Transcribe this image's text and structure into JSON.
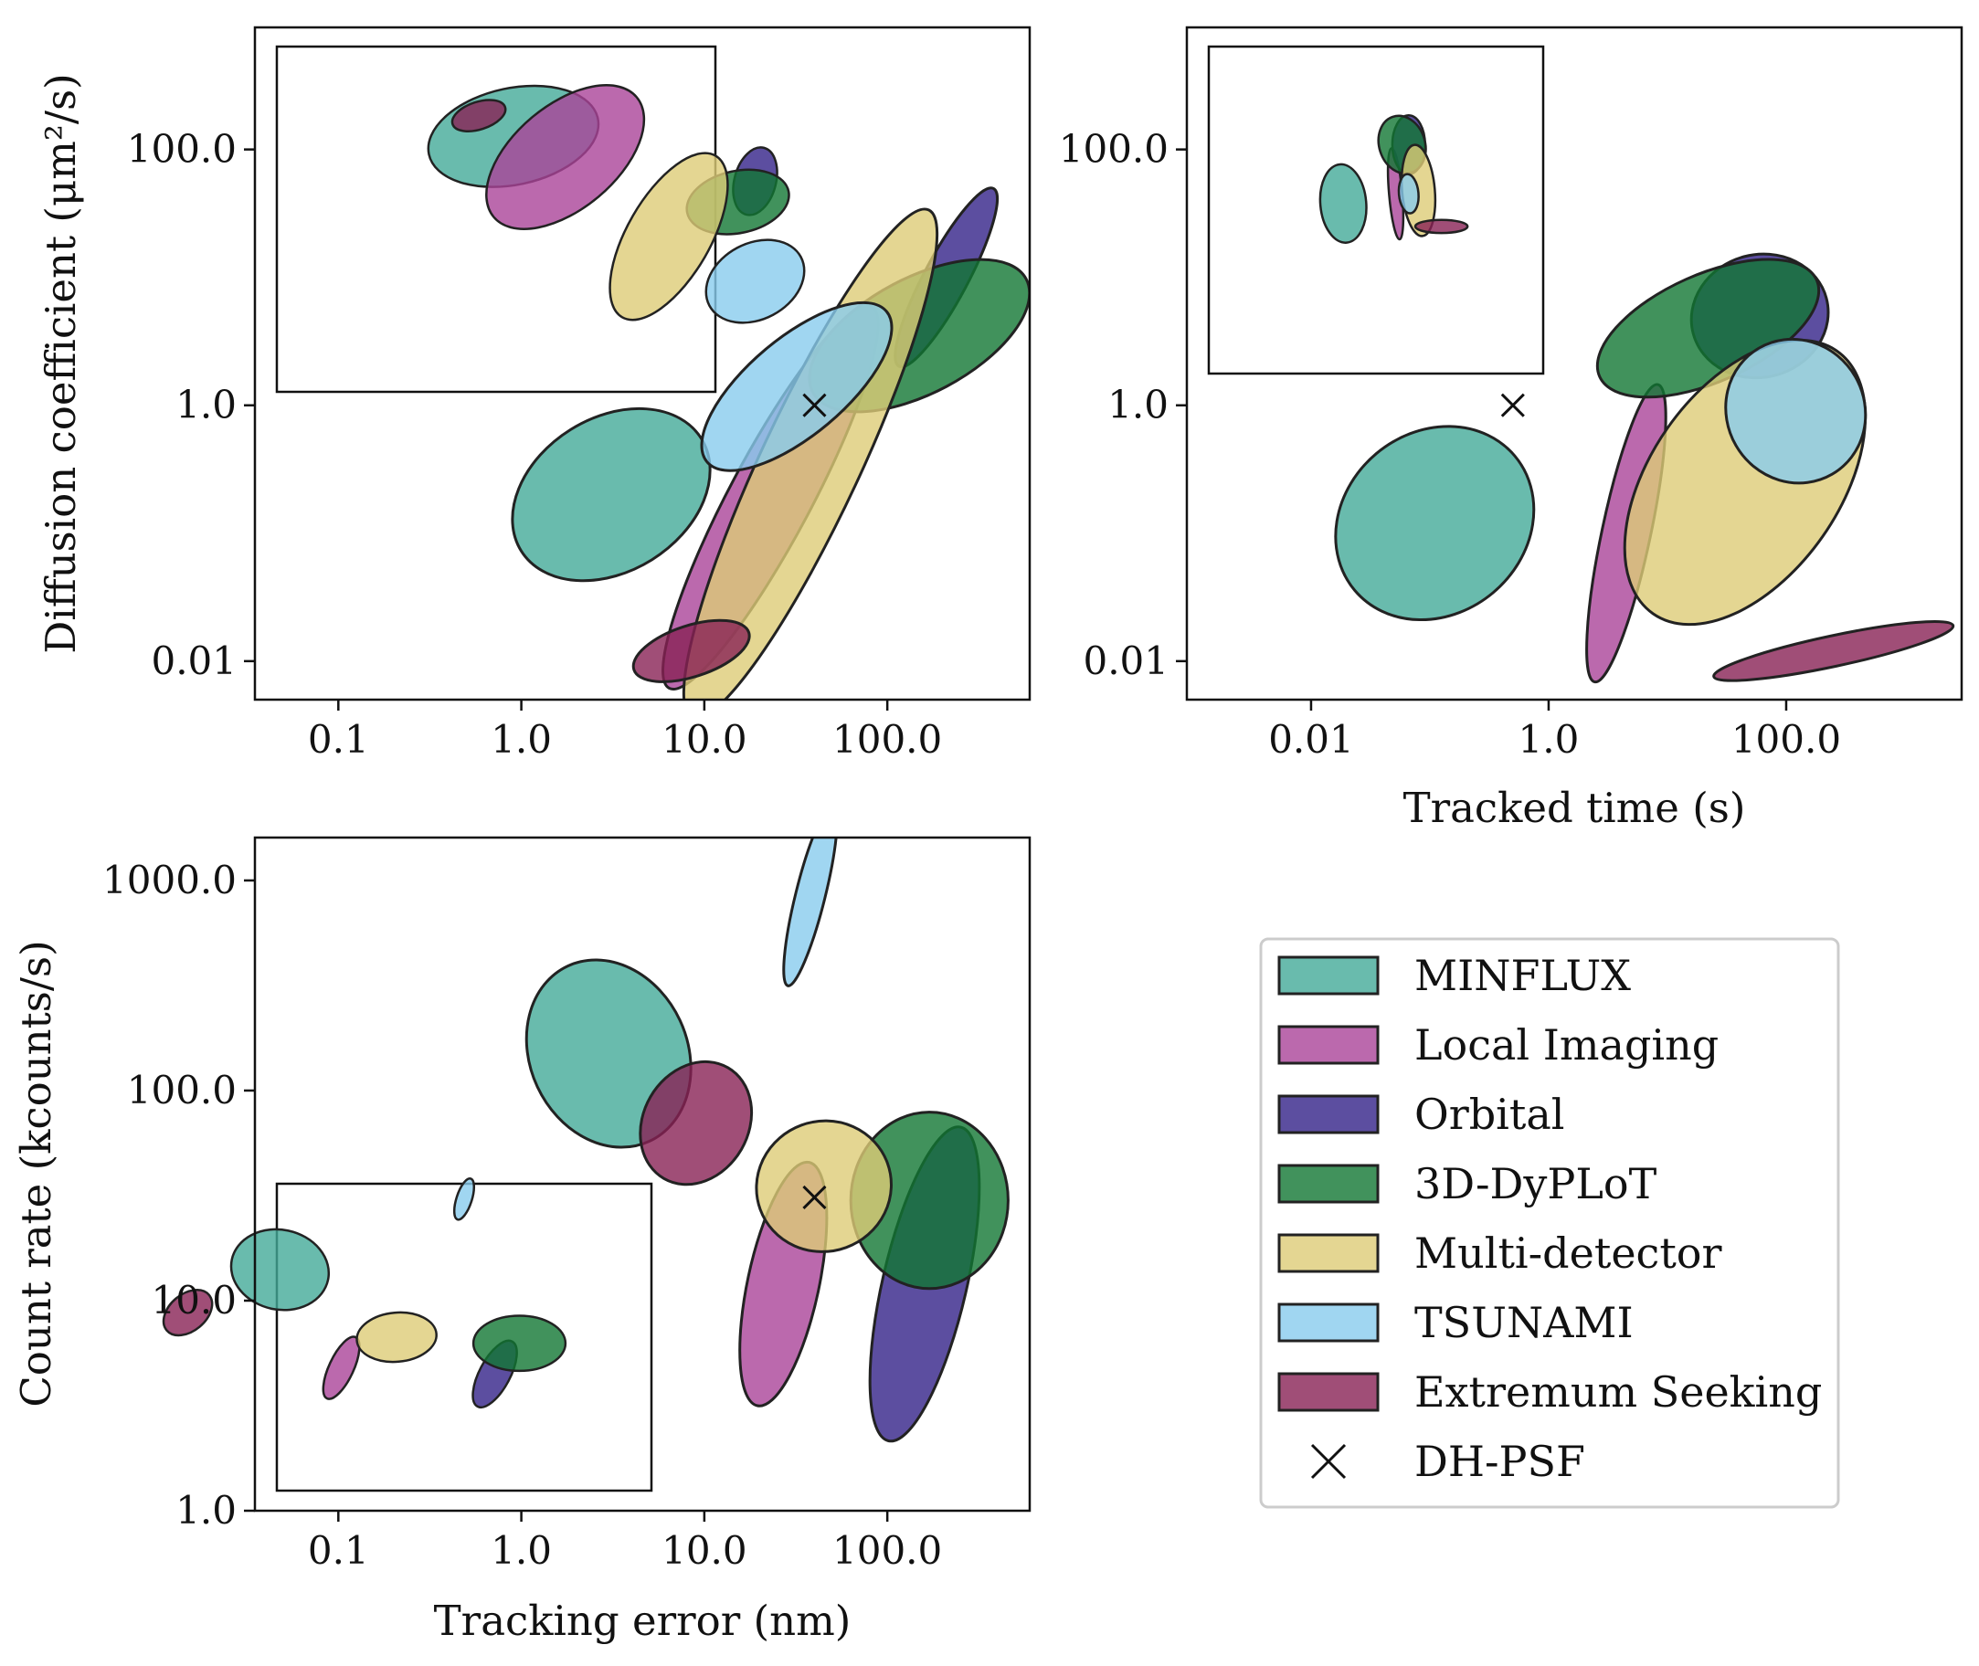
{
  "colors": {
    "MINFLUX": "#44aa99",
    "Local Imaging": "#aa4499",
    "Orbital": "#332288",
    "3D-DyPLoT": "#117733",
    "Multi-detector": "#ddcc77",
    "TSUNAMI": "#88ccee",
    "Extremum Seeking": "#882255",
    "edge": "#222222"
  },
  "legend": {
    "items": [
      {
        "label": "MINFLUX",
        "method": "MINFLUX"
      },
      {
        "label": "Local Imaging",
        "method": "Local Imaging"
      },
      {
        "label": "Orbital",
        "method": "Orbital"
      },
      {
        "label": "3D-DyPLoT",
        "method": "3D-DyPLoT"
      },
      {
        "label": "Multi-detector",
        "method": "Multi-detector"
      },
      {
        "label": "TSUNAMI",
        "method": "TSUNAMI"
      },
      {
        "label": "Extremum Seeking",
        "method": "Extremum Seeking"
      },
      {
        "label": "DH-PSF",
        "method": "DH-PSF",
        "marker": "x"
      }
    ]
  },
  "chart_data": [
    {
      "id": "error_vs_diffusion",
      "type": "scatter",
      "description_of_marks": "ellipses spanning method ranges, log-log axes",
      "xlabel": "",
      "ylabel": "Diffusion coefficient (μm²/s)",
      "xscale": "log",
      "yscale": "log",
      "xlim": [
        0.035,
        600
      ],
      "ylim": [
        0.005,
        900
      ],
      "xticks": [
        0.1,
        1,
        10,
        100
      ],
      "xtick_labels": [
        "0.1",
        "1.0",
        "10.0",
        "100.0"
      ],
      "yticks": [
        0.01,
        1,
        100
      ],
      "ytick_labels": [
        "0.01",
        "1.0",
        "100.0"
      ],
      "ellipses": [
        {
          "method": "MINFLUX",
          "cx": 3.1,
          "cy": 0.2,
          "rx": 0.58,
          "ry": 0.6,
          "angle": -32
        },
        {
          "method": "Local Imaging",
          "cx": 23,
          "cy": 0.19,
          "rx": 1.18,
          "ry": 0.32,
          "angle": -62
        },
        {
          "method": "Orbital",
          "cx": 210,
          "cy": 10,
          "rx": 0.55,
          "ry": 0.17,
          "angle": -62
        },
        {
          "method": "3D-DyPLoT",
          "cx": 150,
          "cy": 3.5,
          "rx": 0.66,
          "ry": 0.45,
          "angle": -28
        },
        {
          "method": "Multi-detector",
          "cx": 38,
          "cy": 0.35,
          "rx": 1.53,
          "ry": 0.39,
          "angle": -65
        },
        {
          "method": "TSUNAMI",
          "cx": 32,
          "cy": 1.4,
          "rx": 0.64,
          "ry": 0.38,
          "angle": -40
        },
        {
          "method": "Extremum Seeking",
          "cx": 8.5,
          "cy": 0.012,
          "rx": 0.33,
          "ry": 0.2,
          "angle": -18
        }
      ],
      "points": [
        {
          "method": "DH-PSF",
          "x": 40,
          "y": 1.0,
          "marker": "x"
        }
      ],
      "inset": {
        "ellipses": [
          {
            "method": "MINFLUX",
            "cx": 0.05,
            "cy": 0.24,
            "rx": 0.25,
            "ry": 0.14,
            "angle": -12
          },
          {
            "method": "Local Imaging",
            "cx": 0.2,
            "cy": 0.18,
            "rx": 0.27,
            "ry": 0.15,
            "angle": -40
          },
          {
            "method": "Orbital",
            "cx": 0.75,
            "cy": 0.11,
            "rx": 0.06,
            "ry": 0.1,
            "angle": 15
          },
          {
            "method": "3D-DyPLoT",
            "cx": 0.7,
            "cy": 0.05,
            "rx": 0.15,
            "ry": 0.09,
            "angle": -12
          },
          {
            "method": "Multi-detector",
            "cx": 0.5,
            "cy": -0.05,
            "rx": 0.27,
            "ry": 0.12,
            "angle": -60
          },
          {
            "method": "TSUNAMI",
            "cx": 0.75,
            "cy": -0.18,
            "rx": 0.15,
            "ry": 0.11,
            "angle": -28
          },
          {
            "method": "Extremum Seeking",
            "cx": -0.05,
            "cy": 0.3,
            "rx": 0.08,
            "ry": 0.04,
            "angle": -18
          }
        ]
      }
    },
    {
      "id": "time_vs_diffusion",
      "type": "scatter",
      "description_of_marks": "ellipses spanning method ranges, log-log axes",
      "xlabel": "Tracked time (s)",
      "ylabel": "",
      "xscale": "log",
      "yscale": "log",
      "xlim": [
        0.0009,
        3000
      ],
      "ylim": [
        0.005,
        900
      ],
      "xticks": [
        0.01,
        1,
        100
      ],
      "xtick_labels": [
        "0.01",
        "1.0",
        "100.0"
      ],
      "yticks": [
        0.01,
        1,
        100
      ],
      "ytick_labels": [
        "0.01",
        "1.0",
        "100.0"
      ],
      "ellipses": [
        {
          "method": "MINFLUX",
          "cx": 0.11,
          "cy": 0.12,
          "rx": 0.88,
          "ry": 0.71,
          "angle": -40
        },
        {
          "method": "Local Imaging",
          "cx": 4.5,
          "cy": 0.1,
          "rx": 1.28,
          "ry": 0.19,
          "angle": -78
        },
        {
          "method": "Orbital",
          "cx": 60,
          "cy": 5,
          "rx": 0.58,
          "ry": 0.48,
          "angle": -15
        },
        {
          "method": "3D-DyPLoT",
          "cx": 22,
          "cy": 4,
          "rx": 1.0,
          "ry": 0.42,
          "angle": -24
        },
        {
          "method": "Multi-detector",
          "cx": 45,
          "cy": 0.25,
          "rx": 1.35,
          "ry": 0.74,
          "angle": -55
        },
        {
          "method": "TSUNAMI",
          "cx": 120,
          "cy": 0.9,
          "rx": 0.58,
          "ry": 0.57,
          "angle": -30
        },
        {
          "method": "Extremum Seeking",
          "cx": 250,
          "cy": 0.012,
          "rx": 1.03,
          "ry": 0.12,
          "angle": -12
        }
      ],
      "points": [
        {
          "method": "DH-PSF",
          "x": 0.5,
          "y": 1.0,
          "marker": "x"
        }
      ],
      "inset": {
        "ellipses": [
          {
            "method": "MINFLUX",
            "cx": -0.1,
            "cy": 0.02,
            "rx": 0.07,
            "ry": 0.12,
            "angle": -5
          },
          {
            "method": "Local Imaging",
            "cx": 0.06,
            "cy": 0.05,
            "rx": 0.02,
            "ry": 0.14,
            "angle": -5
          },
          {
            "method": "Orbital",
            "cx": 0.1,
            "cy": 0.2,
            "rx": 0.05,
            "ry": 0.09,
            "angle": 0
          },
          {
            "method": "3D-DyPLoT",
            "cx": 0.08,
            "cy": 0.2,
            "rx": 0.07,
            "ry": 0.09,
            "angle": -18
          },
          {
            "method": "Multi-detector",
            "cx": 0.13,
            "cy": 0.06,
            "rx": 0.05,
            "ry": 0.14,
            "angle": -5
          },
          {
            "method": "TSUNAMI",
            "cx": 0.1,
            "cy": 0.05,
            "rx": 0.03,
            "ry": 0.06,
            "angle": -5
          },
          {
            "method": "Extremum Seeking",
            "cx": 0.2,
            "cy": -0.05,
            "rx": 0.08,
            "ry": 0.02,
            "angle": 0
          }
        ]
      }
    },
    {
      "id": "error_vs_countrate",
      "type": "scatter",
      "description_of_marks": "ellipses spanning method ranges, log-log axes",
      "xlabel": "Tracking error (nm)",
      "ylabel": "Count rate (kcounts/s)",
      "xscale": "log",
      "yscale": "log",
      "xlim": [
        0.035,
        600
      ],
      "ylim": [
        1.0,
        1600
      ],
      "xticks": [
        0.1,
        1,
        10,
        100
      ],
      "xtick_labels": [
        "0.1",
        "1.0",
        "10.0",
        "100.0"
      ],
      "yticks": [
        1,
        10,
        100,
        1000
      ],
      "ytick_labels": [
        "1.0",
        "10.0",
        "100.0",
        "1000.0"
      ],
      "ellipses": [
        {
          "method": "MINFLUX",
          "cx": 3.0,
          "cy": 150,
          "rx": 0.43,
          "ry": 0.46,
          "angle": -25
        },
        {
          "method": "Local Imaging",
          "cx": 27,
          "cy": 12,
          "rx": 0.68,
          "ry": 0.17,
          "angle": -78
        },
        {
          "method": "Orbital",
          "cx": 160,
          "cy": 12,
          "rx": 0.88,
          "ry": 0.2,
          "angle": -77
        },
        {
          "method": "3D-DyPLoT",
          "cx": 170,
          "cy": 30,
          "rx": 0.43,
          "ry": 0.42,
          "angle": 0
        },
        {
          "method": "Multi-detector",
          "cx": 45,
          "cy": 35,
          "rx": 0.37,
          "ry": 0.31,
          "angle": -20
        },
        {
          "method": "TSUNAMI",
          "cx": 38,
          "cy": 850,
          "rx": 0.51,
          "ry": 0.07,
          "angle": -76
        },
        {
          "method": "Extremum Seeking",
          "cx": 9,
          "cy": 70,
          "rx": 0.35,
          "ry": 0.25,
          "angle": -60
        }
      ],
      "points": [
        {
          "method": "DH-PSF",
          "x": 40,
          "y": 31,
          "marker": "x"
        }
      ],
      "inset": {
        "ellipses": [
          {
            "method": "MINFLUX",
            "cx": -0.6,
            "cy": 0.22,
            "rx": 0.16,
            "ry": 0.13,
            "angle": 12
          },
          {
            "method": "Local Imaging",
            "cx": -0.4,
            "cy": -0.1,
            "rx": 0.11,
            "ry": 0.04,
            "angle": -65
          },
          {
            "method": "Orbital",
            "cx": 0.1,
            "cy": -0.12,
            "rx": 0.12,
            "ry": 0.05,
            "angle": -62
          },
          {
            "method": "3D-DyPLoT",
            "cx": 0.18,
            "cy": -0.02,
            "rx": 0.15,
            "ry": 0.09,
            "angle": 0
          },
          {
            "method": "Multi-detector",
            "cx": -0.22,
            "cy": 0.0,
            "rx": 0.13,
            "ry": 0.08,
            "angle": -5
          },
          {
            "method": "TSUNAMI",
            "cx": 0.0,
            "cy": 0.45,
            "rx": 0.07,
            "ry": 0.025,
            "angle": -72
          },
          {
            "method": "Extremum Seeking",
            "cx": -0.9,
            "cy": 0.08,
            "rx": 0.09,
            "ry": 0.06,
            "angle": -40
          }
        ]
      }
    }
  ]
}
